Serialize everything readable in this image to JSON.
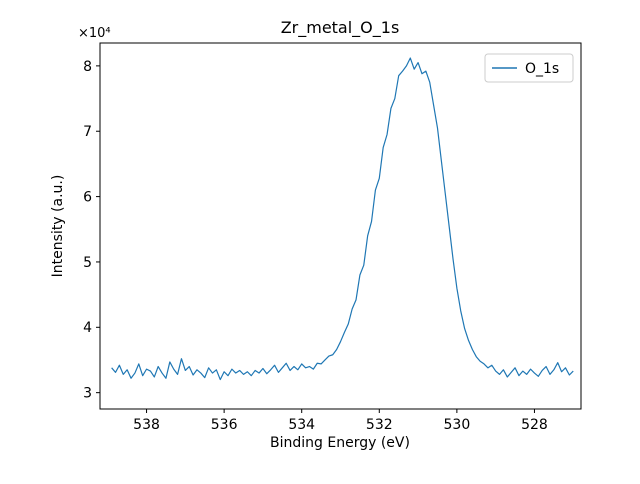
{
  "figure": {
    "title": "Zr_metal_O_1s",
    "xlabel": "Binding Energy (eV)",
    "ylabel": "Intensity (a.u.)",
    "offset_text": "×10⁴",
    "legend": {
      "label": "O_1s"
    }
  },
  "colors": {
    "line": "#1f77b4",
    "axis": "#000000",
    "legend_border": "#cccccc",
    "background": "#ffffff"
  },
  "chart_data": {
    "type": "line",
    "title": "Zr_metal_O_1s",
    "xlabel": "Binding Energy (eV)",
    "ylabel": "Intensity (a.u.)",
    "y_offset_text": "×10⁴",
    "y_unit_multiplier": 10000,
    "legend_position": "upper right",
    "grid": false,
    "axes": {
      "xlim": [
        539.2,
        526.8
      ],
      "x_reversed": true,
      "x_ticks": [
        538,
        536,
        534,
        532,
        530,
        528
      ],
      "ylim": [
        2.75,
        8.35
      ],
      "y_ticks": [
        3,
        4,
        5,
        6,
        7,
        8
      ]
    },
    "series": [
      {
        "name": "O_1s",
        "x": [
          538.9,
          538.8,
          538.7,
          538.6,
          538.5,
          538.4,
          538.3,
          538.2,
          538.1,
          538.0,
          537.9,
          537.8,
          537.7,
          537.6,
          537.5,
          537.4,
          537.3,
          537.2,
          537.1,
          537.0,
          536.9,
          536.8,
          536.7,
          536.6,
          536.5,
          536.4,
          536.3,
          536.2,
          536.1,
          536.0,
          535.9,
          535.8,
          535.7,
          535.6,
          535.5,
          535.4,
          535.3,
          535.2,
          535.1,
          535.0,
          534.9,
          534.8,
          534.7,
          534.6,
          534.5,
          534.4,
          534.3,
          534.2,
          534.1,
          534.0,
          533.9,
          533.8,
          533.7,
          533.6,
          533.5,
          533.4,
          533.3,
          533.2,
          533.1,
          533.0,
          532.9,
          532.8,
          532.7,
          532.6,
          532.5,
          532.4,
          532.3,
          532.2,
          532.1,
          532.0,
          531.9,
          531.8,
          531.7,
          531.6,
          531.5,
          531.4,
          531.3,
          531.2,
          531.1,
          531.0,
          530.9,
          530.8,
          530.7,
          530.6,
          530.5,
          530.4,
          530.3,
          530.2,
          530.1,
          530.0,
          529.9,
          529.8,
          529.7,
          529.6,
          529.5,
          529.4,
          529.3,
          529.2,
          529.1,
          529.0,
          528.9,
          528.8,
          528.7,
          528.6,
          528.5,
          528.4,
          528.3,
          528.2,
          528.1,
          528.0,
          527.9,
          527.8,
          527.7,
          527.6,
          527.5,
          527.4,
          527.3,
          527.2,
          527.1,
          527.0
        ],
        "y": [
          3.38,
          3.31,
          3.42,
          3.28,
          3.35,
          3.22,
          3.3,
          3.44,
          3.26,
          3.36,
          3.33,
          3.24,
          3.4,
          3.3,
          3.22,
          3.47,
          3.36,
          3.28,
          3.52,
          3.34,
          3.4,
          3.27,
          3.35,
          3.3,
          3.23,
          3.38,
          3.3,
          3.35,
          3.2,
          3.32,
          3.26,
          3.36,
          3.3,
          3.34,
          3.28,
          3.32,
          3.26,
          3.34,
          3.3,
          3.37,
          3.29,
          3.35,
          3.42,
          3.31,
          3.38,
          3.45,
          3.34,
          3.4,
          3.35,
          3.44,
          3.38,
          3.4,
          3.36,
          3.45,
          3.44,
          3.5,
          3.56,
          3.58,
          3.66,
          3.78,
          3.92,
          4.05,
          4.28,
          4.42,
          4.8,
          4.95,
          5.4,
          5.62,
          6.1,
          6.28,
          6.75,
          6.95,
          7.35,
          7.5,
          7.85,
          7.92,
          8.0,
          8.12,
          7.95,
          8.05,
          7.88,
          7.92,
          7.75,
          7.4,
          7.05,
          6.55,
          6.05,
          5.55,
          5.05,
          4.6,
          4.25,
          3.98,
          3.8,
          3.66,
          3.55,
          3.48,
          3.44,
          3.38,
          3.42,
          3.33,
          3.28,
          3.35,
          3.24,
          3.31,
          3.38,
          3.26,
          3.33,
          3.28,
          3.36,
          3.3,
          3.25,
          3.34,
          3.4,
          3.28,
          3.35,
          3.46,
          3.32,
          3.38,
          3.27,
          3.33
        ]
      }
    ]
  }
}
